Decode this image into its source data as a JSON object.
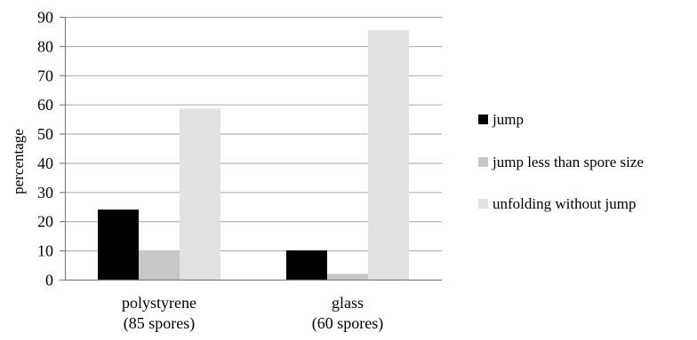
{
  "chart_data": {
    "type": "bar",
    "categories": [
      [
        "polystyrene",
        "(85 spores)"
      ],
      [
        "glass",
        "(60 spores)"
      ]
    ],
    "series": [
      {
        "name": "jump",
        "values": [
          24,
          10
        ],
        "color": "#000000"
      },
      {
        "name": "jump less than spore size",
        "values": [
          10,
          2
        ],
        "color": "#c8c8c8"
      },
      {
        "name": "unfolding without jump",
        "values": [
          58.5,
          85.5
        ],
        "color": "#e2e2e2"
      }
    ],
    "ylabel": "percentage",
    "ylim": [
      0,
      90
    ],
    "yticks": [
      0,
      10,
      20,
      30,
      40,
      50,
      60,
      70,
      80,
      90
    ],
    "grid": true,
    "legend_position": "right"
  }
}
